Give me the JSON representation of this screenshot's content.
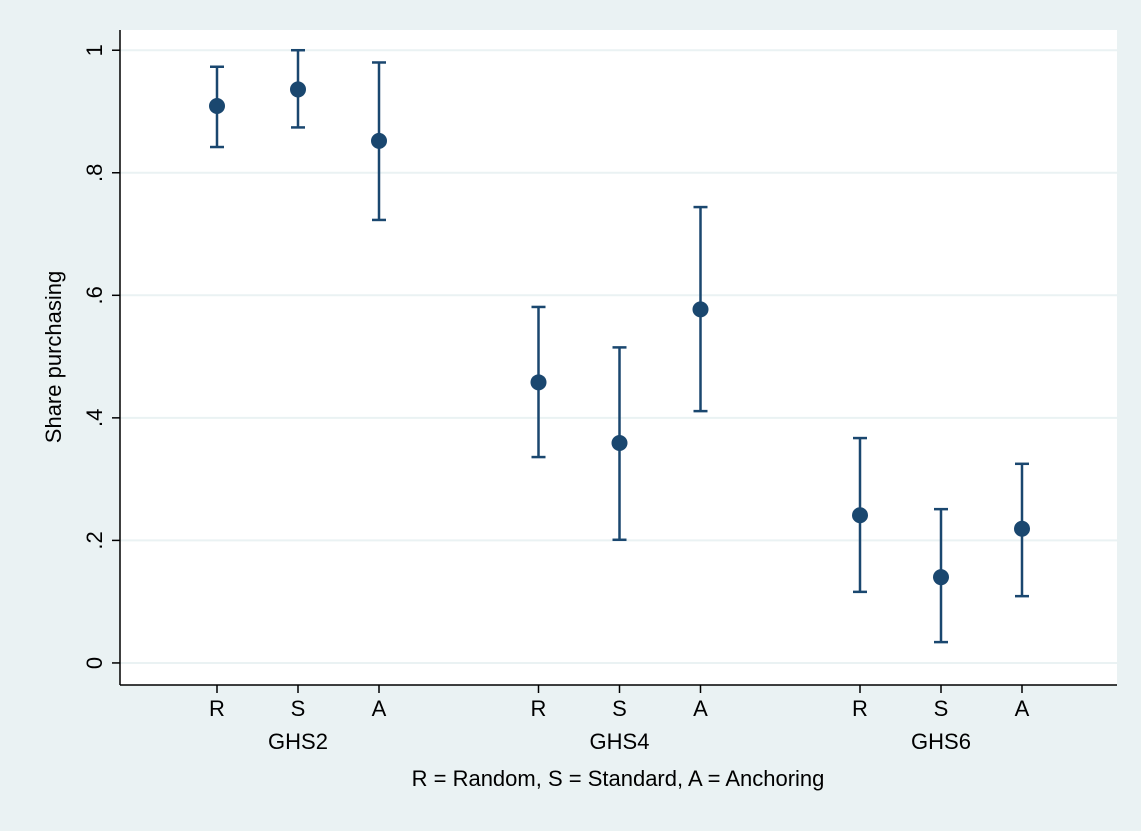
{
  "chart_data": {
    "type": "errorbar",
    "x_label": "R = Random, S = Standard, A = Anchoring",
    "y_label": "Share purchasing",
    "categories": [
      "R",
      "S",
      "A",
      "R",
      "S",
      "A",
      "R",
      "S",
      "A"
    ],
    "groups": [
      "GHS2",
      "GHS4",
      "GHS6"
    ],
    "series": [
      {
        "color": "#1a476f",
        "values": [
          0.909,
          0.936,
          0.852,
          0.458,
          0.359,
          0.577,
          0.241,
          0.14,
          0.219
        ],
        "lower": [
          0.842,
          0.874,
          0.723,
          0.336,
          0.201,
          0.411,
          0.116,
          0.034,
          0.109
        ],
        "upper": [
          0.973,
          1.0,
          0.98,
          0.581,
          0.515,
          0.744,
          0.367,
          0.251,
          0.325
        ]
      }
    ],
    "ylim": [
      -0.036,
      1.033
    ],
    "yticks": [
      0,
      {
        "value": 0.2,
        "label": ".2"
      },
      {
        "value": 0.4,
        "label": ".4"
      },
      {
        "value": 0.6,
        "label": ".6"
      },
      {
        "value": 0.8,
        "label": ".8"
      },
      1
    ],
    "grid": true
  }
}
